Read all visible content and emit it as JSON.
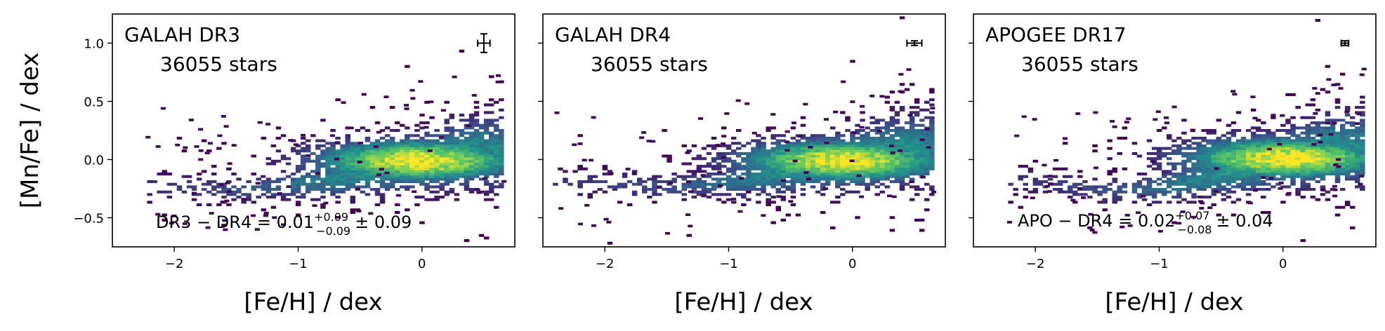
{
  "chart_data": [
    {
      "type": "heatmap",
      "title": "GALAH DR3",
      "count_label": "36055 stars",
      "xlabel": "[Fe/H] / dex",
      "ylabel": "[Mn/Fe] / dex",
      "xlim": [
        -2.5,
        0.75
      ],
      "ylim": [
        -0.75,
        1.25
      ],
      "xticks": [
        -2,
        -1,
        0
      ],
      "xtick_labels": [
        "−2",
        "−1",
        "0"
      ],
      "yticks": [
        -0.5,
        0.0,
        0.5,
        1.0
      ],
      "ytick_labels": [
        "−0.5",
        "0.0",
        "0.5",
        "1.0"
      ],
      "density_ridge": {
        "x": [
          -2.0,
          -1.5,
          -1.0,
          -0.5,
          0.0,
          0.4
        ],
        "y": [
          -0.25,
          -0.27,
          -0.22,
          -0.12,
          -0.02,
          0.05
        ]
      },
      "density_peak": {
        "x": -0.05,
        "y": -0.02
      },
      "errorbar": {
        "x": 0.5,
        "y": 1.0,
        "xerr": 0.05,
        "yerr": 0.08
      },
      "stat": {
        "main": "DR3 − DR4 = 0.01",
        "sup": "+0.09",
        "sub": "−0.09",
        "tail": "± 0.09"
      }
    },
    {
      "type": "heatmap",
      "title": "GALAH DR4",
      "count_label": "36055 stars",
      "xlabel": "[Fe/H] / dex",
      "ylabel": "",
      "xlim": [
        -2.5,
        0.75
      ],
      "ylim": [
        -0.75,
        1.25
      ],
      "xticks": [
        -2,
        -1,
        0
      ],
      "xtick_labels": [
        "−2",
        "−1",
        "0"
      ],
      "yticks": [
        -0.5,
        0.0,
        0.5,
        1.0
      ],
      "ytick_labels": [],
      "density_ridge": {
        "x": [
          -2.2,
          -1.5,
          -1.0,
          -0.5,
          0.0,
          0.4
        ],
        "y": [
          -0.2,
          -0.25,
          -0.2,
          -0.1,
          0.0,
          0.08
        ]
      },
      "density_peak": {
        "x": -0.1,
        "y": -0.02
      },
      "errorbar": {
        "x": 0.5,
        "y": 1.0,
        "xerr": 0.06,
        "yerr": 0.02
      },
      "stat": null
    },
    {
      "type": "heatmap",
      "title": "APOGEE DR17",
      "count_label": "36055 stars",
      "xlabel": "[Fe/H] / dex",
      "ylabel": "",
      "xlim": [
        -2.5,
        0.75
      ],
      "ylim": [
        -0.75,
        1.25
      ],
      "xticks": [
        -2,
        -1,
        0
      ],
      "xtick_labels": [
        "−2",
        "−1",
        "0"
      ],
      "yticks": [
        -0.5,
        0.0,
        0.5,
        1.0
      ],
      "ytick_labels": [],
      "density_ridge": {
        "x": [
          -2.0,
          -1.5,
          -1.0,
          -0.5,
          0.0,
          0.4
        ],
        "y": [
          -0.2,
          -0.28,
          -0.25,
          -0.12,
          0.0,
          0.08
        ]
      },
      "density_peak": {
        "x": 0.0,
        "y": 0.0
      },
      "errorbar": {
        "x": 0.5,
        "y": 1.0,
        "xerr": 0.03,
        "yerr": 0.02
      },
      "stat": {
        "main": "APO − DR4 = 0.02",
        "sup": "+0.07",
        "sub": "−0.08",
        "tail": "± 0.04"
      }
    }
  ]
}
